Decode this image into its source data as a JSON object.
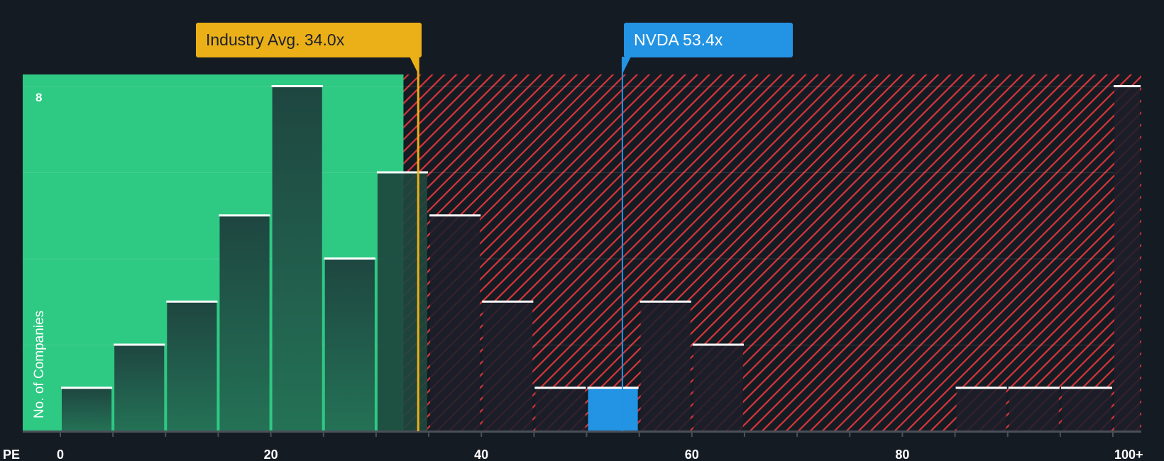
{
  "chart_data": {
    "type": "bar",
    "title": "",
    "xlabel": "PE",
    "ylabel": "No. of Companies",
    "bin_width": 5,
    "bins": [
      {
        "from": 0,
        "to": 5,
        "count": 1
      },
      {
        "from": 5,
        "to": 10,
        "count": 2
      },
      {
        "from": 10,
        "to": 15,
        "count": 3
      },
      {
        "from": 15,
        "to": 20,
        "count": 5
      },
      {
        "from": 20,
        "to": 25,
        "count": 8
      },
      {
        "from": 25,
        "to": 30,
        "count": 4
      },
      {
        "from": 30,
        "to": 35,
        "count": 6
      },
      {
        "from": 35,
        "to": 40,
        "count": 5
      },
      {
        "from": 40,
        "to": 45,
        "count": 3
      },
      {
        "from": 45,
        "to": 50,
        "count": 1
      },
      {
        "from": 50,
        "to": 55,
        "count": 1,
        "highlight": true
      },
      {
        "from": 55,
        "to": 60,
        "count": 3
      },
      {
        "from": 60,
        "to": 65,
        "count": 2
      },
      {
        "from": 65,
        "to": 70,
        "count": 0
      },
      {
        "from": 70,
        "to": 75,
        "count": 0
      },
      {
        "from": 75,
        "to": 80,
        "count": 0
      },
      {
        "from": 80,
        "to": 85,
        "count": 0
      },
      {
        "from": 85,
        "to": 90,
        "count": 1
      },
      {
        "from": 90,
        "to": 95,
        "count": 1
      },
      {
        "from": 95,
        "to": 100,
        "count": 1
      },
      {
        "from": 100,
        "to": 103,
        "count": 8,
        "label": "100+"
      }
    ],
    "x_ticks": [
      {
        "value": 0,
        "label": "0"
      },
      {
        "value": 20,
        "label": "20"
      },
      {
        "value": 40,
        "label": "40"
      },
      {
        "value": 60,
        "label": "60"
      },
      {
        "value": 80,
        "label": "80"
      },
      {
        "value": 101.5,
        "label": "100+"
      }
    ],
    "y_max_label": "8",
    "ylim": [
      0,
      8
    ],
    "fair_zone_end": 32.6,
    "industry_avg": {
      "value": 34.0,
      "label": "Industry Avg. 34.0x"
    },
    "company": {
      "value": 53.4,
      "label": "NVDA 53.4x"
    },
    "colors": {
      "green": "#2ec983",
      "red_hatch": "#d8353a",
      "industry": "#ebb017",
      "company": "#2393e3",
      "background": "#151b23"
    }
  }
}
